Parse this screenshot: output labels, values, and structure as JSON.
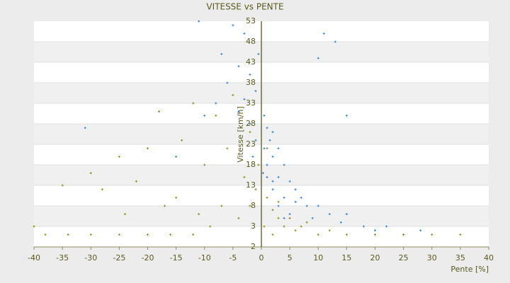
{
  "chart_data": {
    "type": "scatter",
    "title": "VITESSE vs PENTE",
    "x_label": "Pente [%]",
    "y_label": "Vitesse [km/h]",
    "xlim": [
      -40,
      40
    ],
    "xticks": [
      -40,
      -35,
      -30,
      -25,
      -20,
      -15,
      -10,
      -5,
      0,
      5,
      10,
      15,
      20,
      25,
      30,
      35,
      40
    ],
    "ylim": [
      -2,
      53
    ],
    "yticks": [
      -2,
      3,
      8,
      13,
      18,
      23,
      28,
      33,
      38,
      43,
      48,
      53
    ],
    "grid": true,
    "series": [
      {
        "color": "#2f7fd0",
        "x": [
          -5,
          -3,
          -7,
          -4,
          -2,
          -6,
          -1,
          -3,
          -8,
          -10,
          -4,
          -2,
          0.5,
          1,
          2,
          1.5,
          3,
          0.5,
          -1,
          2,
          4,
          1,
          3,
          5,
          6,
          2,
          4,
          7,
          8,
          3,
          5,
          10,
          12,
          9,
          14,
          15,
          18,
          20,
          22,
          11,
          13,
          -11,
          -31,
          -15,
          1,
          2,
          0.3,
          6,
          4,
          25,
          28,
          -0.5,
          -1.5,
          15,
          10
        ],
        "values": [
          52,
          50,
          45,
          42,
          40,
          38,
          36,
          34,
          33,
          30,
          31,
          28,
          30,
          27,
          26,
          24,
          22,
          22,
          24,
          20,
          18,
          18,
          15,
          14,
          12,
          12,
          10,
          10,
          8,
          8,
          6,
          8,
          6,
          5,
          4,
          6,
          3,
          2,
          3,
          50,
          48,
          53,
          27,
          20,
          15,
          14,
          16,
          9,
          5,
          1,
          2,
          45,
          20,
          30,
          44
        ]
      },
      {
        "color": "#8a8a14",
        "x": [
          -5,
          -8,
          -12,
          -18,
          -14,
          -20,
          -25,
          -22,
          -28,
          -30,
          -35,
          -38,
          -34,
          -40,
          -15,
          -10,
          -6,
          -3,
          -2,
          -1,
          -4,
          -7,
          -9,
          -12,
          -16,
          -20,
          -25,
          -30,
          1,
          2,
          3,
          4,
          5,
          6,
          8,
          10,
          12,
          15,
          20,
          25,
          30,
          35,
          0.5,
          -0.5,
          1,
          -2,
          -11,
          -17,
          -24,
          7,
          3,
          2
        ],
        "values": [
          35,
          30,
          33,
          31,
          24,
          22,
          20,
          14,
          12,
          16,
          13,
          1,
          1,
          3,
          10,
          18,
          22,
          15,
          8,
          12,
          5,
          8,
          3,
          1,
          1,
          1,
          1,
          1,
          10,
          7,
          5,
          3,
          5,
          2,
          4,
          1,
          2,
          1,
          1,
          1,
          1,
          1,
          3,
          18,
          22,
          26,
          6,
          8,
          6,
          3,
          9,
          1
        ]
      }
    ]
  }
}
